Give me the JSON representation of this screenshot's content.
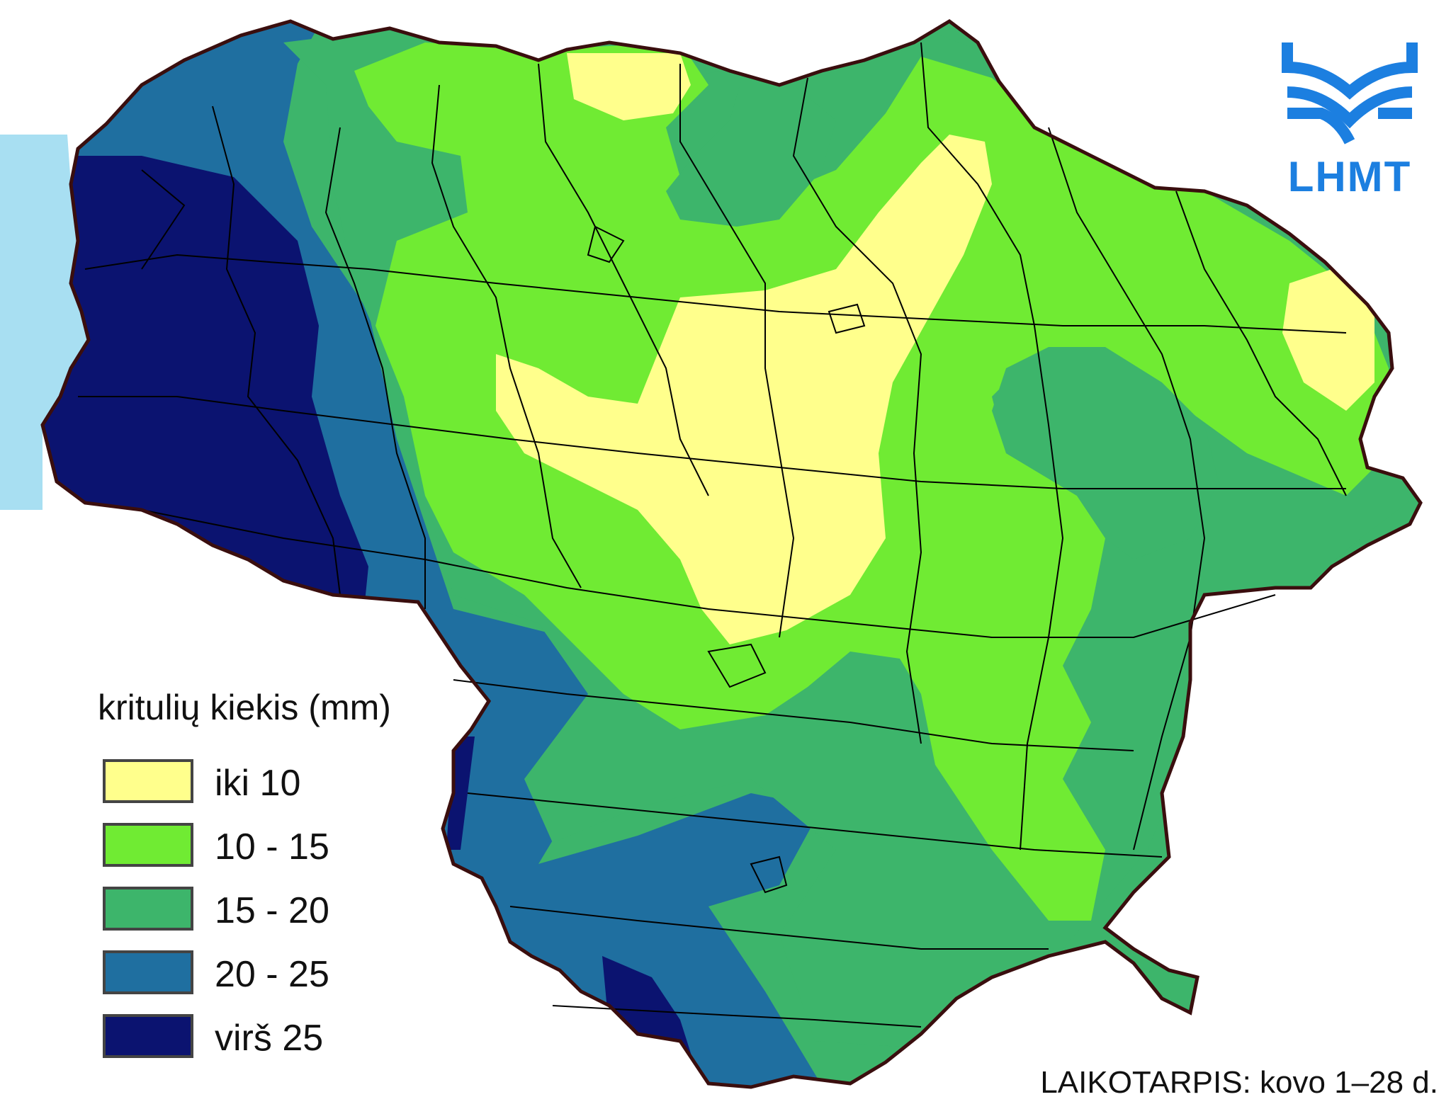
{
  "logo": {
    "text": "LHMT",
    "color": "#1c7fe0"
  },
  "legend": {
    "title": "kritulių kiekis (mm)",
    "items": [
      {
        "label": "iki 10",
        "color": "#ffff8c"
      },
      {
        "label": "10 - 15",
        "color": "#70eb33"
      },
      {
        "label": "15 - 20",
        "color": "#3db56b"
      },
      {
        "label": "20 - 25",
        "color": "#1f6fa0"
      },
      {
        "label": "virš 25",
        "color": "#0b1370"
      }
    ]
  },
  "period": "LAIKOTARPIS: kovo 1–28 d.",
  "colors": {
    "sea": "#a8dff2",
    "border": "#3a0e0e",
    "district_lines": "#000000"
  }
}
